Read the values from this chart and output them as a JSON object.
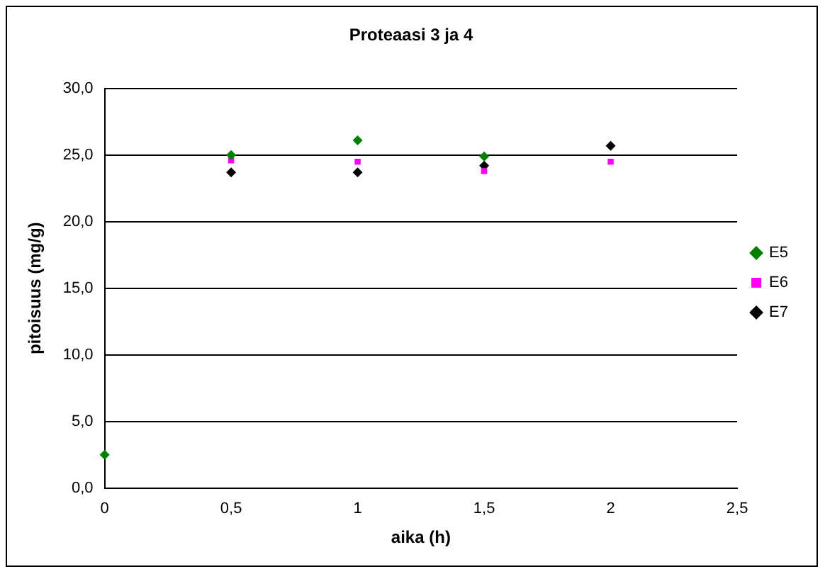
{
  "chart_data": {
    "type": "scatter",
    "title": "Proteaasi 3 ja 4",
    "xlabel": "aika (h)",
    "ylabel": "pitoisuus (mg/g)",
    "x": [
      0,
      0.5,
      1,
      1.5,
      2
    ],
    "series": [
      {
        "name": "E5",
        "color": "#008000",
        "marker": "diamond",
        "values": [
          2.5,
          25.0,
          26.1,
          24.9,
          null
        ]
      },
      {
        "name": "E6",
        "color": "#ff00ff",
        "marker": "square",
        "values": [
          null,
          24.6,
          24.5,
          23.8,
          24.5
        ]
      },
      {
        "name": "E7",
        "color": "#000000",
        "marker": "diamond",
        "values": [
          null,
          23.7,
          23.7,
          24.2,
          25.7
        ]
      }
    ],
    "xlim": [
      0,
      2.5
    ],
    "xticks": [
      0,
      {
        "value": 0.5,
        "label": "0,5"
      },
      1,
      {
        "value": 1.5,
        "label": "1,5"
      },
      2,
      {
        "value": 2.5,
        "label": "2,5"
      }
    ],
    "ylim": [
      0,
      30
    ],
    "yticks": [
      {
        "value": 0,
        "label": "0,0"
      },
      {
        "value": 5,
        "label": "5,0"
      },
      {
        "value": 10,
        "label": "10,0"
      },
      {
        "value": 15,
        "label": "15,0"
      },
      {
        "value": 20,
        "label": "20,0"
      },
      {
        "value": 25,
        "label": "25,0"
      },
      {
        "value": 30,
        "label": "30,0"
      }
    ],
    "grid": "y",
    "legend": "right"
  }
}
